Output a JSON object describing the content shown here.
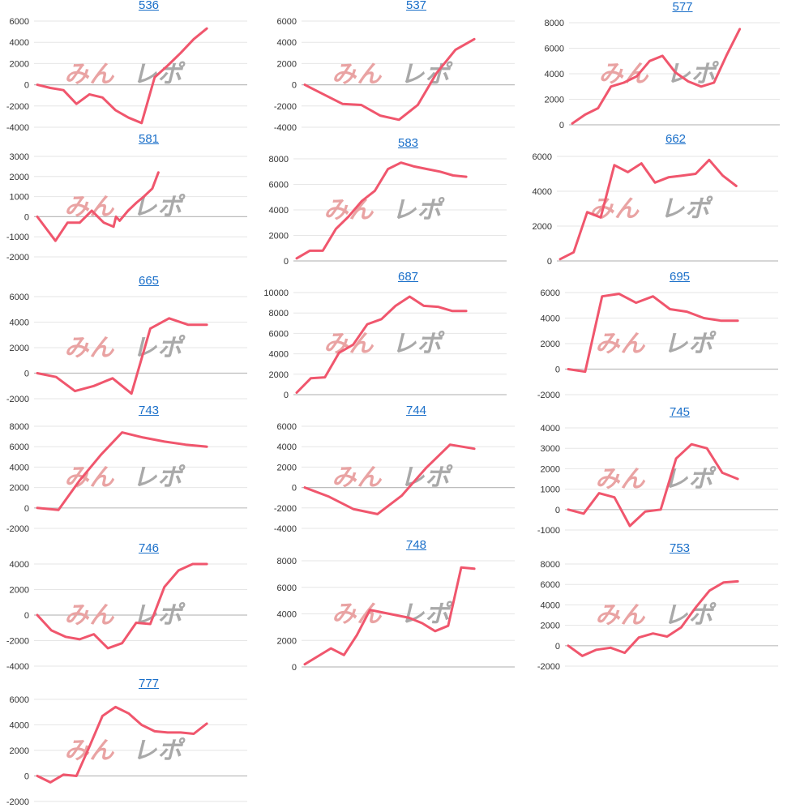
{
  "watermark": {
    "left": "みん",
    "right": "レポ",
    "left_color": "#e9a3a3",
    "right_color": "#a9a9a9"
  },
  "line_color": "#f0566d",
  "chart_data": [
    {
      "type": "line",
      "title": "536",
      "ylim": [
        -4000,
        6000
      ],
      "yticks": [
        -4000,
        -2000,
        0,
        2000,
        4000,
        6000
      ],
      "x": [
        0,
        1,
        2,
        3,
        4,
        5,
        6,
        7,
        8,
        9,
        10,
        11,
        12,
        13
      ],
      "values": [
        0,
        -300,
        -500,
        -1800,
        -900,
        -1200,
        -2400,
        -3100,
        -3600,
        700,
        1800,
        3000,
        4300,
        5300
      ]
    },
    {
      "type": "line",
      "title": "537",
      "ylim": [
        -4000,
        6000
      ],
      "yticks": [
        -4000,
        -2000,
        0,
        2000,
        4000,
        6000
      ],
      "x": [
        0,
        1,
        2,
        3,
        4,
        5,
        6,
        7,
        8,
        9
      ],
      "values": [
        0,
        -900,
        -1800,
        -1900,
        -2900,
        -3300,
        -1900,
        1100,
        3300,
        4300
      ]
    },
    {
      "type": "line",
      "title": "577",
      "ylim": [
        0,
        8000
      ],
      "yticks": [
        0,
        2000,
        4000,
        6000,
        8000
      ],
      "x": [
        0,
        1,
        2,
        3,
        4,
        5,
        6,
        7,
        8,
        9,
        10,
        11,
        12,
        13
      ],
      "values": [
        100,
        800,
        1300,
        3000,
        3300,
        3800,
        5000,
        5400,
        4100,
        3400,
        3000,
        3300,
        5500,
        7500
      ]
    },
    {
      "type": "line",
      "title": "581",
      "ylim": [
        -2000,
        3000
      ],
      "yticks": [
        -2000,
        -1000,
        0,
        1000,
        2000,
        3000
      ],
      "x": [
        0,
        1,
        2,
        3,
        4,
        5,
        6,
        7,
        8,
        9,
        10,
        11,
        12,
        13,
        14
      ],
      "values": [
        0,
        -1200,
        -300,
        -300,
        300,
        -300,
        -500,
        0,
        -200,
        300,
        700,
        1000,
        1400,
        2200,
        2200
      ],
      "xs": [
        0,
        1.5,
        2.5,
        3.5,
        4.5,
        5.5,
        6.3,
        6.5,
        6.8,
        7.5,
        8.2,
        8.8,
        9.5,
        10,
        10
      ]
    },
    {
      "type": "line",
      "title": "583",
      "ylim": [
        0,
        8000
      ],
      "yticks": [
        0,
        2000,
        4000,
        6000,
        8000
      ],
      "x": [
        0,
        1,
        2,
        3,
        4,
        5,
        6,
        7,
        8,
        9,
        10,
        11,
        12,
        13
      ],
      "values": [
        200,
        800,
        800,
        2500,
        3500,
        4700,
        5500,
        7200,
        7700,
        7400,
        7200,
        7000,
        6700,
        6600
      ]
    },
    {
      "type": "line",
      "title": "662",
      "ylim": [
        0,
        6000
      ],
      "yticks": [
        0,
        2000,
        4000,
        6000
      ],
      "x": [
        0,
        1,
        2,
        3,
        4,
        5,
        6,
        7,
        8,
        9,
        10,
        11,
        12,
        13
      ],
      "values": [
        100,
        500,
        2800,
        2500,
        5500,
        5100,
        5600,
        4500,
        4800,
        4900,
        5000,
        5800,
        4900,
        4300
      ]
    },
    {
      "type": "line",
      "title": "665",
      "ylim": [
        -2000,
        6000
      ],
      "yticks": [
        -2000,
        0,
        2000,
        4000,
        6000
      ],
      "x": [
        0,
        1,
        2,
        3,
        4,
        5,
        6,
        7,
        8,
        9
      ],
      "values": [
        0,
        -300,
        -1400,
        -1000,
        -400,
        -1600,
        3500,
        4300,
        3800,
        3800
      ]
    },
    {
      "type": "line",
      "title": "687",
      "ylim": [
        0,
        10000
      ],
      "yticks": [
        0,
        2000,
        4000,
        6000,
        8000,
        10000
      ],
      "x": [
        0,
        1,
        2,
        3,
        4,
        5,
        6,
        7,
        8,
        9,
        10,
        11,
        12
      ],
      "values": [
        200,
        1600,
        1700,
        4100,
        4900,
        6900,
        7400,
        8700,
        9600,
        8700,
        8600,
        8200,
        8200
      ]
    },
    {
      "type": "line",
      "title": "695",
      "ylim": [
        -2000,
        6000
      ],
      "yticks": [
        -2000,
        0,
        2000,
        4000,
        6000
      ],
      "x": [
        0,
        1,
        2,
        3,
        4,
        5,
        6,
        7,
        8,
        9,
        10
      ],
      "values": [
        0,
        -200,
        5700,
        5900,
        5200,
        5700,
        4700,
        4500,
        4000,
        3800,
        3800
      ]
    },
    {
      "type": "line",
      "title": "743",
      "ylim": [
        -2000,
        8000
      ],
      "yticks": [
        -2000,
        0,
        2000,
        4000,
        6000,
        8000
      ],
      "x": [
        0,
        1,
        2,
        3,
        4,
        5,
        6,
        7,
        8
      ],
      "values": [
        0,
        -200,
        2700,
        5200,
        7400,
        6900,
        6500,
        6200,
        6000
      ]
    },
    {
      "type": "line",
      "title": "744",
      "ylim": [
        -4000,
        6000
      ],
      "yticks": [
        -4000,
        -2000,
        0,
        2000,
        4000,
        6000
      ],
      "x": [
        0,
        1,
        2,
        3,
        4,
        5,
        6,
        7
      ],
      "values": [
        0,
        -900,
        -2100,
        -2600,
        -800,
        1900,
        4200,
        3800
      ]
    },
    {
      "type": "line",
      "title": "745",
      "ylim": [
        -1000,
        4000
      ],
      "yticks": [
        -1000,
        0,
        1000,
        2000,
        3000,
        4000
      ],
      "x": [
        0,
        1,
        2,
        3,
        4,
        5,
        6,
        7,
        8,
        9,
        10,
        11
      ],
      "values": [
        0,
        -200,
        800,
        600,
        -800,
        -100,
        0,
        2500,
        3200,
        3000,
        1800,
        1500
      ]
    },
    {
      "type": "line",
      "title": "746",
      "ylim": [
        -4000,
        4000
      ],
      "yticks": [
        -4000,
        -2000,
        0,
        2000,
        4000
      ],
      "x": [
        0,
        1,
        2,
        3,
        4,
        5,
        6,
        7,
        8,
        9,
        10,
        11,
        12
      ],
      "values": [
        0,
        -1200,
        -1700,
        -1900,
        -1500,
        -2600,
        -2200,
        -600,
        -700,
        2200,
        3500,
        4000,
        4000
      ]
    },
    {
      "type": "line",
      "title": "748",
      "ylim": [
        0,
        8000
      ],
      "yticks": [
        0,
        2000,
        4000,
        6000,
        8000
      ],
      "x": [
        0,
        1,
        2,
        3,
        4,
        5,
        6,
        7,
        8,
        9,
        10,
        11,
        12,
        13
      ],
      "values": [
        200,
        800,
        1400,
        900,
        2400,
        4300,
        4100,
        3900,
        3700,
        3300,
        2700,
        3100,
        7500,
        7400
      ]
    },
    {
      "type": "line",
      "title": "753",
      "ylim": [
        -2000,
        8000
      ],
      "yticks": [
        -2000,
        0,
        2000,
        4000,
        6000,
        8000
      ],
      "x": [
        0,
        1,
        2,
        3,
        4,
        5,
        6,
        7,
        8,
        9,
        10,
        11,
        12
      ],
      "values": [
        0,
        -1000,
        -400,
        -200,
        -700,
        800,
        1200,
        900,
        1800,
        3700,
        5400,
        6200,
        6300
      ]
    },
    {
      "type": "line",
      "title": "777",
      "ylim": [
        -2000,
        6000
      ],
      "yticks": [
        -2000,
        0,
        2000,
        4000,
        6000
      ],
      "x": [
        0,
        1,
        2,
        3,
        4,
        5,
        6,
        7,
        8,
        9,
        10,
        11,
        12,
        13
      ],
      "values": [
        0,
        -500,
        100,
        0,
        2300,
        4700,
        5400,
        4900,
        4000,
        3500,
        3400,
        3400,
        3300,
        4100
      ]
    }
  ]
}
